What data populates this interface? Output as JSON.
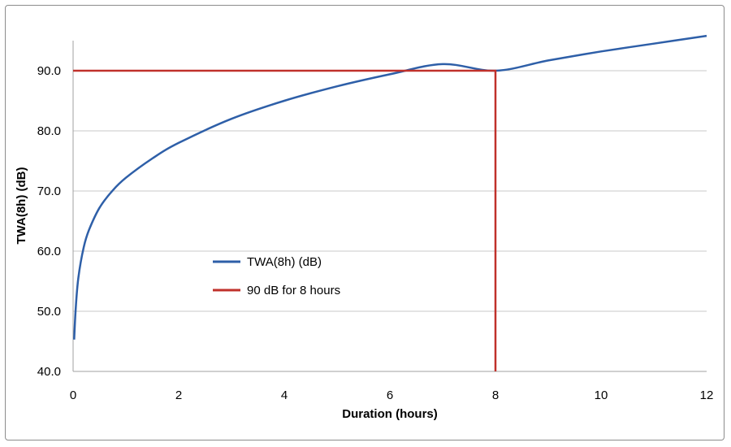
{
  "chart_data": {
    "type": "line",
    "xlabel": "Duration (hours)",
    "ylabel": "TWA(8h) (dB)",
    "xlim": [
      0,
      12
    ],
    "ylim": [
      40,
      90
    ],
    "x_ticks": [
      "0",
      "2",
      "4",
      "6",
      "8",
      "10",
      "12"
    ],
    "y_ticks": [
      "40.0",
      "50.0",
      "60.0",
      "70.0",
      "80.0",
      "90.0"
    ],
    "grid": "horizontal",
    "legend_position": "center-left",
    "series": [
      {
        "name": "TWA(8h) (dB)",
        "color": "#2e5fa8",
        "formula_note_hidden": false,
        "x": [
          0.02,
          0.05,
          0.1,
          0.2,
          0.3,
          0.5,
          0.75,
          1,
          1.5,
          2,
          3,
          4,
          5,
          6,
          7,
          8,
          9,
          10,
          11,
          12
        ],
        "y": [
          45.3,
          50.6,
          55.6,
          60.6,
          63.5,
          67.2,
          70.1,
          72.2,
          75.4,
          78.0,
          82.0,
          85.0,
          87.4,
          89.4,
          91.1,
          90.0,
          91.7,
          93.2,
          94.5,
          95.8
        ]
      },
      {
        "name": "90 dB for 8 hours",
        "color": "#c0312b",
        "x": [
          0,
          8,
          8
        ],
        "y": [
          90,
          90,
          40
        ]
      }
    ]
  }
}
